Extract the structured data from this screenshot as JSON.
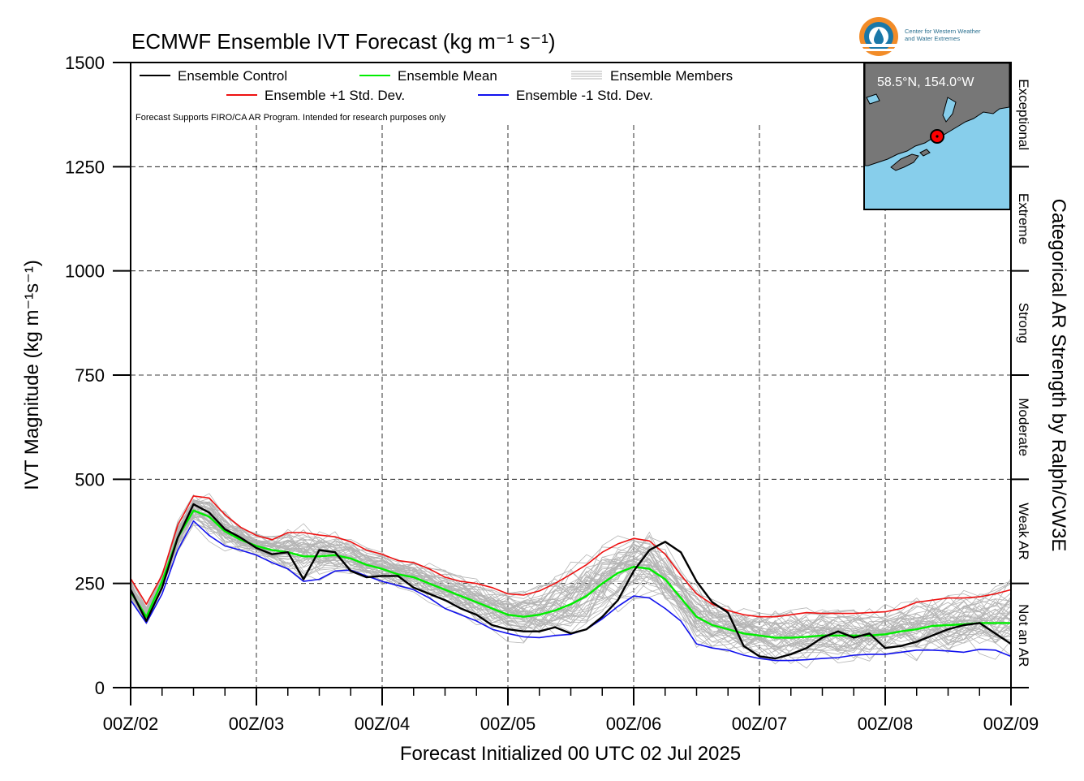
{
  "chart_data": {
    "type": "line",
    "title": "ECMWF Ensemble IVT Forecast (kg m⁻¹ s⁻¹)",
    "xlabel": "Forecast Initialized 00 UTC 02 Jul 2025",
    "ylabel": "IVT Magnitude (kg m⁻¹s⁻¹)",
    "right_label": "Categorical AR Strength by Ralph/CW3E",
    "ylim": [
      0,
      1500
    ],
    "xlim": [
      0,
      168
    ],
    "y_ticks": [
      0,
      250,
      500,
      750,
      1000,
      1250,
      1500
    ],
    "x_ticks": [
      {
        "hour": 0,
        "label": "00Z/02"
      },
      {
        "hour": 24,
        "label": "00Z/03"
      },
      {
        "hour": 48,
        "label": "00Z/04"
      },
      {
        "hour": 72,
        "label": "00Z/05"
      },
      {
        "hour": 96,
        "label": "00Z/06"
      },
      {
        "hour": 120,
        "label": "00Z/07"
      },
      {
        "hour": 144,
        "label": "00Z/08"
      },
      {
        "hour": 168,
        "label": "00Z/09"
      }
    ],
    "categories": [
      {
        "label": "Not an AR",
        "from": 0,
        "to": 250
      },
      {
        "label": "Weak AR",
        "from": 250,
        "to": 500
      },
      {
        "label": "Moderate",
        "from": 500,
        "to": 750
      },
      {
        "label": "Strong",
        "from": 750,
        "to": 1000
      },
      {
        "label": "Extreme",
        "from": 1000,
        "to": 1250
      },
      {
        "label": "Exceptional",
        "from": 1250,
        "to": 1500
      }
    ],
    "grid": true,
    "legend": {
      "placement": "top-left",
      "control": "Ensemble Control",
      "mean": "Ensemble Mean",
      "members": "Ensemble Members",
      "plus": "Ensemble +1 Std. Dev.",
      "minus": "Ensemble -1 Std. Dev."
    },
    "note": "Forecast Supports FIRO/CA AR Program. Intended for research purposes only",
    "colors": {
      "control": "#000000",
      "mean": "#00ee00",
      "plus": "#ee1111",
      "minus": "#1111ee",
      "members": "#b4b4b4",
      "ocean": "#87ceeb",
      "land": "#777777",
      "marker": "#ff0000"
    },
    "series": [
      {
        "name": "Ensemble Control",
        "x": [
          0,
          3,
          6,
          9,
          12,
          15,
          18,
          21,
          24,
          27,
          30,
          33,
          36,
          39,
          42,
          45,
          48,
          51,
          54,
          57,
          60,
          63,
          66,
          69,
          72,
          75,
          78,
          81,
          84,
          87,
          90,
          93,
          96,
          99,
          102,
          105,
          108,
          111,
          114,
          117,
          120,
          123,
          126,
          129,
          132,
          135,
          138,
          141,
          144,
          147,
          150,
          153,
          156,
          159,
          162,
          165,
          168
        ],
        "y": [
          235,
          160,
          240,
          360,
          440,
          420,
          380,
          360,
          335,
          320,
          325,
          260,
          330,
          325,
          280,
          265,
          268,
          268,
          240,
          225,
          210,
          190,
          175,
          150,
          140,
          135,
          135,
          145,
          130,
          140,
          170,
          210,
          280,
          330,
          350,
          325,
          255,
          205,
          180,
          100,
          75,
          70,
          80,
          95,
          120,
          135,
          120,
          130,
          95,
          100,
          110,
          125,
          140,
          150,
          155,
          130,
          105
        ]
      },
      {
        "name": "Ensemble Mean",
        "x": [
          0,
          3,
          6,
          9,
          12,
          15,
          18,
          21,
          24,
          27,
          30,
          33,
          36,
          39,
          42,
          45,
          48,
          51,
          54,
          57,
          60,
          63,
          66,
          69,
          72,
          75,
          78,
          81,
          84,
          87,
          90,
          93,
          96,
          99,
          102,
          105,
          108,
          111,
          114,
          117,
          120,
          123,
          126,
          129,
          132,
          135,
          138,
          141,
          144,
          147,
          150,
          153,
          156,
          159,
          162,
          165,
          168
        ],
        "y": [
          230,
          170,
          255,
          360,
          425,
          410,
          375,
          355,
          340,
          330,
          325,
          315,
          315,
          318,
          310,
          295,
          285,
          272,
          265,
          250,
          235,
          220,
          205,
          190,
          175,
          170,
          175,
          185,
          200,
          220,
          250,
          275,
          290,
          285,
          260,
          215,
          170,
          150,
          140,
          130,
          125,
          120,
          120,
          122,
          125,
          125,
          125,
          125,
          128,
          135,
          140,
          148,
          150,
          152,
          155,
          155,
          155
        ]
      },
      {
        "name": "Ensemble +1 Std. Dev.",
        "x": [
          0,
          3,
          6,
          9,
          12,
          15,
          18,
          21,
          24,
          27,
          30,
          33,
          36,
          39,
          42,
          45,
          48,
          51,
          54,
          57,
          60,
          63,
          66,
          69,
          72,
          75,
          78,
          81,
          84,
          87,
          90,
          93,
          96,
          99,
          102,
          105,
          108,
          111,
          114,
          117,
          120,
          123,
          126,
          129,
          132,
          135,
          138,
          141,
          144,
          147,
          150,
          153,
          156,
          159,
          162,
          165,
          168
        ],
        "y": [
          262,
          200,
          270,
          390,
          460,
          455,
          415,
          385,
          365,
          355,
          372,
          372,
          366,
          362,
          350,
          330,
          320,
          305,
          300,
          285,
          265,
          255,
          250,
          240,
          225,
          222,
          232,
          250,
          272,
          295,
          325,
          345,
          358,
          352,
          320,
          270,
          225,
          200,
          185,
          175,
          170,
          170,
          175,
          180,
          178,
          178,
          178,
          180,
          182,
          190,
          205,
          210,
          215,
          215,
          218,
          225,
          235
        ]
      },
      {
        "name": "Ensemble -1 Std. Dev.",
        "x": [
          0,
          3,
          6,
          9,
          12,
          15,
          18,
          21,
          24,
          27,
          30,
          33,
          36,
          39,
          42,
          45,
          48,
          51,
          54,
          57,
          60,
          63,
          66,
          69,
          72,
          75,
          78,
          81,
          84,
          87,
          90,
          93,
          96,
          99,
          102,
          105,
          108,
          111,
          114,
          117,
          120,
          123,
          126,
          129,
          132,
          135,
          138,
          141,
          144,
          147,
          150,
          153,
          156,
          159,
          162,
          165,
          168
        ],
        "y": [
          210,
          155,
          225,
          330,
          400,
          365,
          340,
          330,
          318,
          300,
          285,
          255,
          260,
          280,
          282,
          268,
          255,
          245,
          235,
          215,
          190,
          175,
          160,
          140,
          130,
          122,
          120,
          125,
          128,
          140,
          165,
          195,
          220,
          215,
          190,
          160,
          105,
          95,
          90,
          78,
          70,
          65,
          65,
          67,
          70,
          72,
          78,
          80,
          80,
          85,
          90,
          90,
          88,
          85,
          92,
          90,
          75
        ]
      }
    ],
    "map": {
      "location_label": "58.5°N, 154.0°W"
    },
    "logo": {
      "line1": "Center for Western Weather",
      "line2": "and Water Extremes"
    }
  }
}
